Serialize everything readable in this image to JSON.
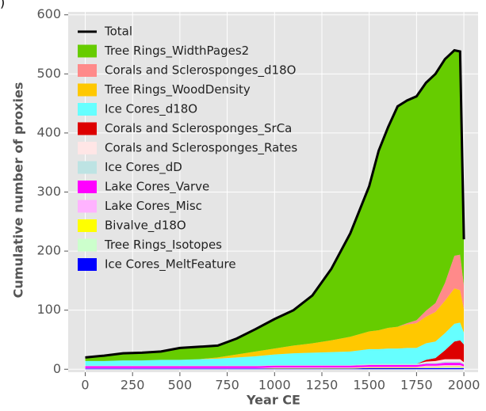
{
  "panel_label": ")",
  "chart_data": {
    "type": "stacked_area",
    "x_label": "Year CE",
    "y_label": "Cumulative number of proxies",
    "x": [
      0,
      100,
      200,
      300,
      400,
      500,
      600,
      700,
      800,
      900,
      1000,
      1100,
      1200,
      1300,
      1400,
      1500,
      1550,
      1600,
      1650,
      1700,
      1750,
      1800,
      1850,
      1900,
      1950,
      1980,
      2000
    ],
    "xlim": [
      -90,
      2075
    ],
    "ylim": [
      -5,
      605
    ],
    "xticks": [
      0,
      250,
      500,
      750,
      1000,
      1250,
      1500,
      1750,
      2000
    ],
    "yticks": [
      0,
      100,
      200,
      300,
      400,
      500,
      600
    ],
    "grid": true,
    "legend": "upper left",
    "series": [
      {
        "name": "Total",
        "kind": "line",
        "color": "#000000",
        "values": [
          20,
          23,
          27,
          28,
          30,
          36,
          38,
          40,
          52,
          68,
          85,
          100,
          125,
          170,
          230,
          310,
          370,
          410,
          445,
          455,
          462,
          485,
          500,
          525,
          540,
          538,
          220
        ]
      },
      {
        "name": "Tree Rings_WidthPages2",
        "color": "#66cc00",
        "values": [
          6,
          9,
          12,
          13,
          14,
          20,
          21,
          20,
          27,
          38,
          50,
          60,
          81,
          121,
          175,
          246,
          304,
          340,
          373,
          377,
          379,
          386,
          388,
          379,
          348,
          344,
          78
        ]
      },
      {
        "name": "Corals and Sclerosponges_d18O",
        "color": "#ff8a8a",
        "values": [
          0,
          0,
          0,
          0,
          0,
          0,
          0,
          0,
          0,
          0,
          0,
          0,
          0,
          0,
          0,
          0,
          0,
          0,
          0,
          2,
          5,
          10,
          15,
          30,
          55,
          60,
          40
        ]
      },
      {
        "name": "Tree Rings_WoodDensity",
        "color": "#ffc800",
        "values": [
          0,
          0,
          0,
          0,
          0,
          0,
          0,
          2,
          5,
          8,
          10,
          13,
          16,
          20,
          25,
          30,
          32,
          35,
          37,
          40,
          42,
          45,
          50,
          55,
          60,
          55,
          40
        ]
      },
      {
        "name": "Ice Cores_d18O",
        "color": "#66ffff",
        "values": [
          8,
          8,
          9,
          9,
          10,
          10,
          11,
          12,
          14,
          16,
          18,
          20,
          21,
          22,
          23,
          25,
          25,
          26,
          26,
          27,
          27,
          28,
          28,
          29,
          30,
          30,
          20
        ]
      },
      {
        "name": "Corals and Sclerosponges_SrCa",
        "color": "#dd0000",
        "values": [
          0,
          0,
          0,
          0,
          0,
          0,
          0,
          0,
          0,
          0,
          0,
          0,
          0,
          0,
          0,
          0,
          0,
          0,
          0,
          0,
          0,
          3,
          5,
          15,
          30,
          32,
          30
        ]
      },
      {
        "name": "Corals and Sclerosponges_Rates",
        "color": "#ffe6e6",
        "values": [
          0,
          0,
          0,
          0,
          0,
          0,
          0,
          0,
          0,
          0,
          0,
          0,
          0,
          0,
          0,
          0,
          0,
          0,
          0,
          0,
          0,
          2,
          3,
          4,
          4,
          4,
          2
        ]
      },
      {
        "name": "Ice Cores_dD",
        "color": "#bde3e3",
        "values": [
          1,
          1,
          1,
          1,
          1,
          1,
          1,
          1,
          1,
          1,
          1,
          1,
          1,
          1,
          1,
          2,
          2,
          2,
          2,
          2,
          2,
          2,
          2,
          2,
          2,
          2,
          2
        ]
      },
      {
        "name": "Lake Cores_Varve",
        "color": "#ff00ff",
        "values": [
          3,
          3,
          3,
          3,
          3,
          3,
          3,
          3,
          3,
          3,
          3,
          3,
          3,
          3,
          3,
          3,
          3,
          3,
          3,
          3,
          3,
          3,
          3,
          4,
          4,
          4,
          3
        ]
      },
      {
        "name": "Lake Cores_Misc",
        "color": "#ffb3ff",
        "values": [
          1,
          1,
          1,
          1,
          1,
          1,
          1,
          1,
          1,
          1,
          1,
          1,
          1,
          1,
          1,
          1,
          1,
          1,
          1,
          1,
          1,
          2,
          2,
          2,
          2,
          2,
          1
        ]
      },
      {
        "name": "Bivalve_d18O",
        "color": "#ffff00",
        "values": [
          0,
          0,
          0,
          0,
          0,
          0,
          0,
          0,
          0,
          0,
          1,
          1,
          1,
          1,
          1,
          1,
          1,
          1,
          1,
          1,
          1,
          1,
          1,
          1,
          1,
          1,
          1
        ]
      },
      {
        "name": "Tree Rings_Isotopes",
        "color": "#ccffcc",
        "values": [
          0,
          0,
          0,
          0,
          0,
          0,
          0,
          0,
          0,
          0,
          0,
          0,
          0,
          0,
          0,
          0,
          0,
          0,
          0,
          0,
          0,
          1,
          1,
          2,
          2,
          2,
          1
        ]
      },
      {
        "name": "Ice Cores_MeltFeature",
        "color": "#0000ff",
        "values": [
          1,
          1,
          1,
          1,
          1,
          1,
          1,
          1,
          1,
          1,
          1,
          1,
          1,
          1,
          1,
          2,
          2,
          2,
          2,
          2,
          2,
          2,
          2,
          2,
          2,
          2,
          2
        ]
      }
    ]
  }
}
